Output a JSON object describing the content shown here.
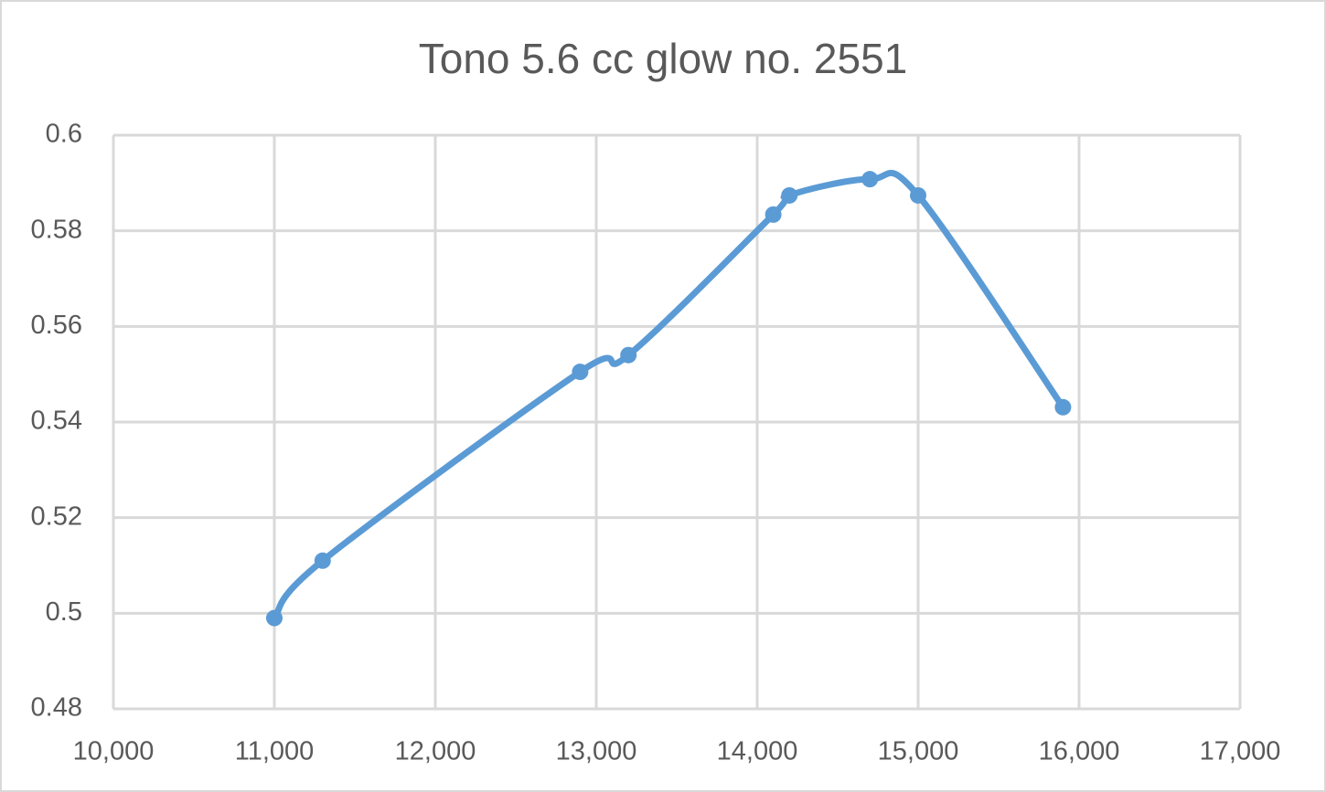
{
  "chart_data": {
    "type": "scatter-smooth",
    "title": "Tono 5.6 cc glow no. 2551",
    "series": [
      {
        "color": "#5b9bd5",
        "x": [
          11000,
          11300,
          12900,
          13200,
          14100,
          14200,
          14700,
          15000,
          15900
        ],
        "values": [
          0.499,
          0.511,
          0.5505,
          0.554,
          0.5834,
          0.5874,
          0.5908,
          0.5874,
          0.5431
        ]
      }
    ],
    "xlim": [
      10000,
      17000
    ],
    "xticks": [
      {
        "value": 10000,
        "label": "10,000"
      },
      {
        "value": 11000,
        "label": "11,000"
      },
      {
        "value": 12000,
        "label": "12,000"
      },
      {
        "value": 13000,
        "label": "13,000"
      },
      {
        "value": 14000,
        "label": "14,000"
      },
      {
        "value": 15000,
        "label": "15,000"
      },
      {
        "value": 16000,
        "label": "16,000"
      },
      {
        "value": 17000,
        "label": "17,000"
      }
    ],
    "ylim": [
      0.48,
      0.6
    ],
    "yticks": [
      0.48,
      0.5,
      0.52,
      0.54,
      0.56,
      0.58,
      0.6
    ],
    "grid": true
  }
}
